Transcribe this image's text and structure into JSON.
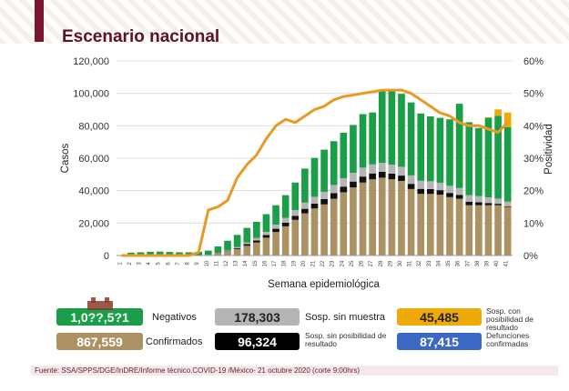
{
  "title": "Escenario nacional",
  "footer": "Fuente: SSA/SPPS/DGE/InDRE/Informe técnico.COVID-19 /México- 21 octubre 2020 (corte 9:00hrs)",
  "colors": {
    "confirmados": "#ac9163",
    "defunciones": "#111111",
    "sin_muestra": "#b5b5b5",
    "negativos": "#1b9e48",
    "sosp_posibilidad": "#f0aa08",
    "positividad": "#e89a22",
    "sin_posibilidad": "#3a68c4",
    "header_accent": "#7a1730"
  },
  "stats": {
    "negativos": {
      "value": "1,0??,5?1",
      "label": "Negativos"
    },
    "confirmados": {
      "value": "867,559",
      "label": "Confirmados"
    },
    "sin_muestra": {
      "value": "178,303",
      "label": "Sosp. sin muestra"
    },
    "sin_posibilidad": {
      "value": "96,324",
      "label": "Sosp. sin posibilidad de resultado"
    },
    "con_posibilidad": {
      "value": "45,485",
      "label": "Sosp. con posibilidad de resultado"
    },
    "defunciones": {
      "value": "87,415",
      "label": "Defunciones confirmadas"
    }
  },
  "chart_data": {
    "type": "bar",
    "stacked": true,
    "xlabel": "Semana epidemiológica",
    "ylabel": "Casos",
    "y2label": "Positividad",
    "ylim": [
      0,
      120000
    ],
    "y2lim": [
      0,
      60
    ],
    "yticks": [
      "0",
      "20,000",
      "40,000",
      "60,000",
      "80,000",
      "100,000",
      "120,000"
    ],
    "y2ticks": [
      "0%",
      "10%",
      "20%",
      "30%",
      "40%",
      "50%",
      "60%"
    ],
    "categories": [
      "1",
      "2",
      "3",
      "4",
      "5",
      "6",
      "7",
      "8",
      "9",
      "10",
      "11",
      "12",
      "13",
      "14",
      "15",
      "16",
      "17",
      "18",
      "19",
      "20",
      "21",
      "22",
      "23",
      "24",
      "25",
      "26",
      "27",
      "28",
      "29",
      "30",
      "31",
      "32",
      "33",
      "34",
      "35",
      "36",
      "37",
      "38",
      "39",
      "40",
      "41"
    ],
    "series": [
      {
        "name": "Confirmados",
        "values": [
          0,
          0,
          0,
          0,
          0,
          0,
          0,
          0,
          50,
          400,
          1300,
          2500,
          4000,
          6000,
          8000,
          11000,
          14500,
          18000,
          22000,
          26000,
          29000,
          31500,
          35000,
          39000,
          42000,
          45000,
          47000,
          48000,
          47000,
          46000,
          41000,
          38000,
          38000,
          37500,
          36000,
          35000,
          31000,
          31000,
          31000,
          31000,
          30000
        ]
      },
      {
        "name": "Defunciones",
        "values": [
          0,
          0,
          0,
          0,
          0,
          0,
          0,
          0,
          0,
          0,
          100,
          200,
          500,
          1000,
          1300,
          1600,
          2000,
          2200,
          2500,
          2800,
          3000,
          3300,
          3500,
          3500,
          3600,
          3700,
          3600,
          3600,
          3500,
          3300,
          3200,
          3100,
          3000,
          2800,
          2600,
          2400,
          2200,
          1800,
          1400,
          900,
          400
        ]
      },
      {
        "name": "Sosp. sin muestra",
        "values": [
          0,
          0,
          0,
          0,
          0,
          0,
          0,
          0,
          0,
          0,
          200,
          400,
          700,
          1000,
          1500,
          2000,
          2500,
          3000,
          3500,
          3800,
          4200,
          4500,
          5000,
          5200,
          5400,
          5500,
          5600,
          5600,
          5500,
          5400,
          5200,
          5000,
          4800,
          4600,
          4400,
          4200,
          4000,
          3800,
          3500,
          3200,
          2800
        ]
      },
      {
        "name": "Negativos",
        "values": [
          0,
          1800,
          2000,
          2300,
          2400,
          2200,
          2000,
          2000,
          2200,
          2600,
          4000,
          6000,
          7500,
          9000,
          10000,
          10900,
          12000,
          14000,
          17000,
          21000,
          24000,
          26000,
          27000,
          28000,
          29500,
          33000,
          32000,
          45000,
          46000,
          45000,
          45000,
          41500,
          40000,
          40000,
          41000,
          52000,
          45000,
          42000,
          49000,
          51000,
          46000
        ]
      },
      {
        "name": "Sosp. con posibilidad",
        "values": [
          0,
          0,
          0,
          0,
          0,
          0,
          0,
          0,
          0,
          0,
          0,
          0,
          0,
          0,
          0,
          0,
          0,
          0,
          0,
          0,
          0,
          0,
          0,
          0,
          0,
          0,
          0,
          0,
          0,
          0,
          0,
          0,
          0,
          0,
          0,
          0,
          0,
          0,
          400,
          4000,
          9000
        ]
      }
    ],
    "positividad": [
      0,
      0,
      0,
      0,
      0,
      0,
      0,
      0,
      1,
      14,
      15,
      17,
      24,
      28,
      31,
      36,
      40,
      42,
      41,
      43,
      45,
      46,
      48,
      49,
      49.5,
      50,
      50.5,
      51,
      51,
      51,
      50,
      48,
      46,
      44,
      43,
      41,
      40,
      40,
      39,
      38,
      41
    ]
  }
}
